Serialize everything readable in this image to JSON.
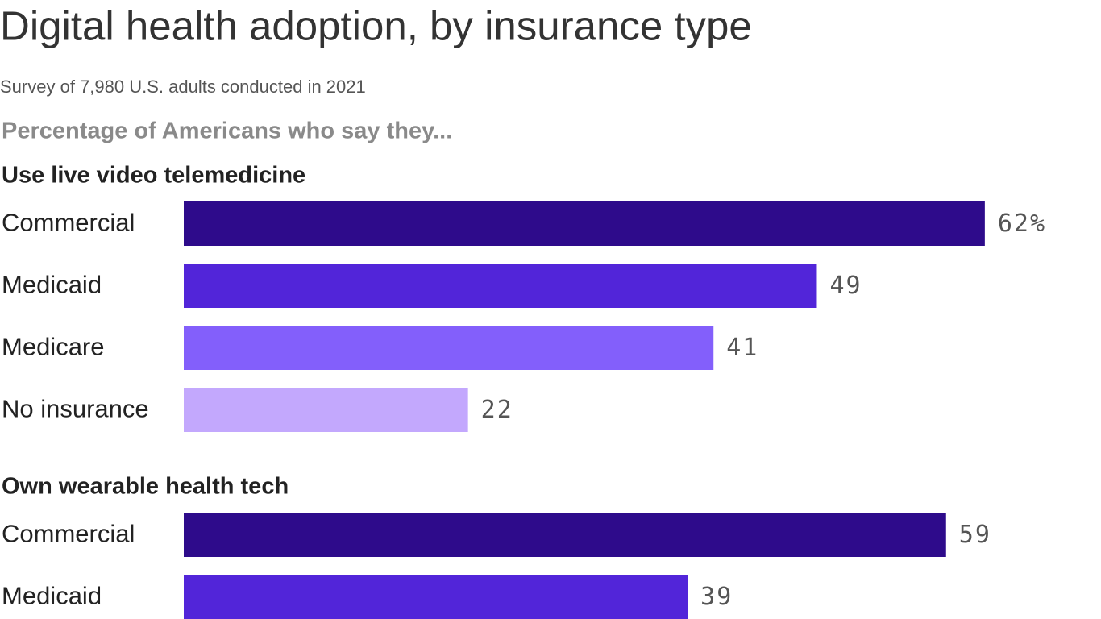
{
  "title": "Digital health adoption, by insurance type",
  "subtitle": "Survey of 7,980 U.S. adults conducted in 2021",
  "question": "Percentage of Americans who say they...",
  "chart_data": [
    {
      "type": "bar",
      "orientation": "horizontal",
      "title": "Use live video telemedicine",
      "categories": [
        "Commercial",
        "Medicaid",
        "Medicare",
        "No insurance"
      ],
      "values": [
        62,
        49,
        41,
        22
      ],
      "value_labels": [
        "62%",
        "49",
        "41",
        "22"
      ],
      "colors": [
        "#2e0b8b",
        "#5225d9",
        "#835ffb",
        "#c3a8fd"
      ]
    },
    {
      "type": "bar",
      "orientation": "horizontal",
      "title": "Own wearable health tech",
      "categories": [
        "Commercial",
        "Medicaid"
      ],
      "values": [
        59,
        39
      ],
      "colors": [
        "#2e0b8b",
        "#5225d9"
      ]
    }
  ]
}
